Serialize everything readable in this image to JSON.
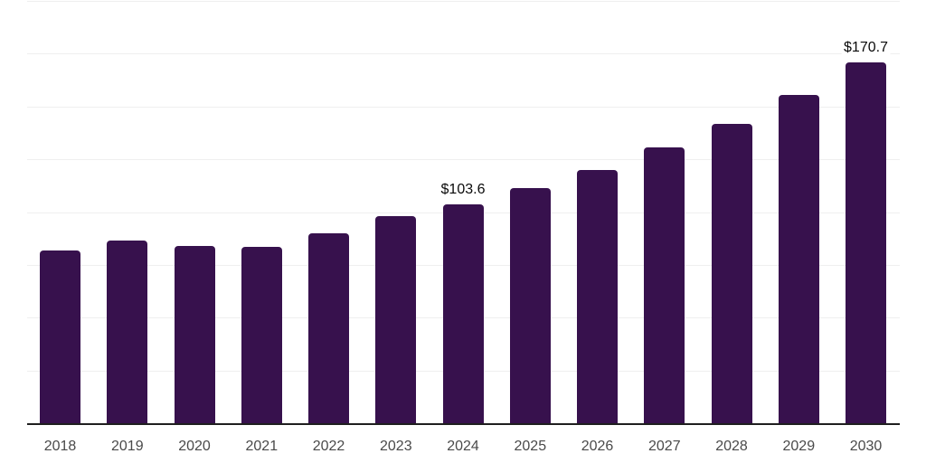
{
  "chart_data": {
    "type": "bar",
    "title": "",
    "xlabel": "",
    "ylabel": "",
    "categories": [
      "2018",
      "2019",
      "2020",
      "2021",
      "2022",
      "2023",
      "2024",
      "2025",
      "2026",
      "2027",
      "2028",
      "2029",
      "2030"
    ],
    "values": [
      81.9,
      86.6,
      84.0,
      83.6,
      90.0,
      97.9,
      103.6,
      111.3,
      119.9,
      130.6,
      141.6,
      155.3,
      170.7
    ],
    "value_labels": [
      "",
      "",
      "",
      "",
      "",
      "",
      "$103.6",
      "",
      "",
      "",
      "",
      "",
      "$170.7"
    ],
    "ylim": [
      0,
      200
    ],
    "grid_step": 25,
    "grid": true,
    "legend": false,
    "colors": {
      "bar": "#37114d",
      "grid": "#efefef",
      "axis": "#1f1f1f",
      "tick_text": "#4a4a4a",
      "value_text": "#0a0a0a",
      "background": "#ffffff"
    }
  }
}
